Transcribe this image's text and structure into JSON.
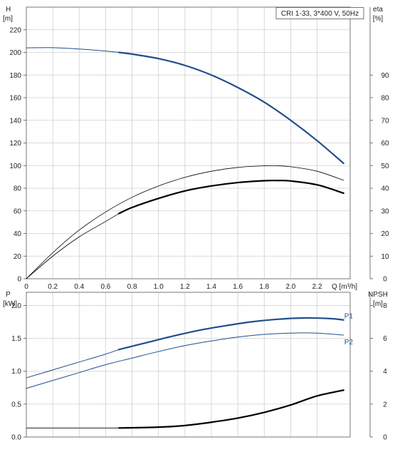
{
  "chart_data": [
    {
      "type": "line",
      "title": "CRI 1-33, 3*400 V, 50Hz",
      "x_label": "Q [m³/h]",
      "y_left_label": [
        "H",
        "[m]"
      ],
      "y_right_label": [
        "eta",
        "[%]"
      ],
      "x_ticks": [
        "0",
        "0.2",
        "0.4",
        "0.6",
        "0.8",
        "1.0",
        "1.2",
        "1.4",
        "1.6",
        "1.8",
        "2.0",
        "2.2"
      ],
      "x_tick_values": [
        0,
        0.2,
        0.4,
        0.6,
        0.8,
        1.0,
        1.2,
        1.4,
        1.6,
        1.8,
        2.0,
        2.2
      ],
      "y_left_ticks": [
        "0",
        "20",
        "40",
        "60",
        "80",
        "100",
        "120",
        "140",
        "160",
        "180",
        "200",
        "220"
      ],
      "y_left_tick_values": [
        0,
        20,
        40,
        60,
        80,
        100,
        120,
        140,
        160,
        180,
        200,
        220
      ],
      "y_right_ticks": [
        "0",
        "10",
        "20",
        "30",
        "40",
        "50",
        "60",
        "70",
        "80",
        "90"
      ],
      "y_right_tick_values": [
        0,
        10,
        20,
        30,
        40,
        50,
        60,
        70,
        80,
        90
      ],
      "xlim": [
        0,
        2.45
      ],
      "ylim_left": [
        0,
        240
      ],
      "ylim_right": [
        0,
        120
      ],
      "grid": true,
      "series": [
        {
          "color": "#1f4e8c",
          "width": 1.0,
          "axis": "left",
          "x": [
            0,
            0.2,
            0.4,
            0.6,
            0.7
          ],
          "y": [
            204,
            204.2,
            203,
            201.2,
            200
          ]
        },
        {
          "color": "#1f4e8c",
          "width": 2.2,
          "axis": "left",
          "x": [
            0.7,
            0.8,
            1.0,
            1.2,
            1.4,
            1.6,
            1.8,
            2.0,
            2.2,
            2.4
          ],
          "y": [
            200,
            198.5,
            194.5,
            188.5,
            180,
            169,
            156,
            140,
            122,
            102
          ]
        },
        {
          "color": "#000000",
          "width": 0.8,
          "axis": "right",
          "x": [
            0,
            0.2,
            0.4,
            0.6,
            0.8,
            1.0,
            1.2,
            1.4,
            1.6,
            1.8,
            1.9,
            2.0,
            2.2,
            2.4
          ],
          "y": [
            0,
            11.5,
            21.5,
            29.5,
            36,
            41,
            44.8,
            47.5,
            49.2,
            49.9,
            49.9,
            49.5,
            47.5,
            43.5
          ]
        },
        {
          "color": "#000000",
          "width": 0.8,
          "axis": "right",
          "x": [
            0,
            0.2,
            0.4,
            0.6,
            0.7
          ],
          "y": [
            0,
            10,
            18.5,
            25.3,
            28.8
          ]
        },
        {
          "color": "#000000",
          "width": 2.2,
          "axis": "right",
          "x": [
            0.7,
            0.8,
            1.0,
            1.2,
            1.4,
            1.6,
            1.8,
            1.9,
            2.0,
            2.2,
            2.4
          ],
          "y": [
            28.8,
            31.5,
            35.5,
            38.8,
            41,
            42.5,
            43.3,
            43.4,
            43.2,
            41.5,
            37.8
          ]
        }
      ]
    },
    {
      "type": "line",
      "y_left_label": [
        "P",
        "[kW]"
      ],
      "y_right_label": [
        "NPSH",
        "[m]"
      ],
      "y_left_ticks": [
        "0.0",
        "0.5",
        "1.0",
        "1.5",
        "2.0"
      ],
      "y_left_tick_values": [
        0,
        0.5,
        1.0,
        1.5,
        2.0
      ],
      "y_right_ticks": [
        "0",
        "2",
        "4",
        "6",
        "8"
      ],
      "y_right_tick_values": [
        0,
        2,
        4,
        6,
        8
      ],
      "xlim": [
        0,
        2.45
      ],
      "ylim_left": [
        0,
        2.2
      ],
      "ylim_right": [
        0,
        8.8
      ],
      "grid": true,
      "series": [
        {
          "name": "P1",
          "color": "#1f4e8c",
          "width": 1.0,
          "axis": "left",
          "x": [
            0,
            0.2,
            0.4,
            0.6,
            0.7
          ],
          "y": [
            0.9,
            1.02,
            1.14,
            1.26,
            1.33
          ]
        },
        {
          "name": "P1",
          "color": "#1f4e8c",
          "width": 2.2,
          "axis": "left",
          "x": [
            0.7,
            0.9,
            1.1,
            1.3,
            1.5,
            1.7,
            1.9,
            2.1,
            2.3,
            2.4
          ],
          "y": [
            1.33,
            1.43,
            1.53,
            1.62,
            1.69,
            1.75,
            1.79,
            1.81,
            1.8,
            1.78
          ]
        },
        {
          "name": "P2",
          "color": "#1f4e8c",
          "width": 1.0,
          "axis": "left",
          "x": [
            0,
            0.2,
            0.4,
            0.6,
            0.8,
            1.0,
            1.2,
            1.4,
            1.6,
            1.8,
            2.0,
            2.2,
            2.4
          ],
          "y": [
            0.74,
            0.86,
            0.98,
            1.1,
            1.2,
            1.3,
            1.39,
            1.46,
            1.52,
            1.56,
            1.58,
            1.58,
            1.55
          ]
        },
        {
          "color": "#000000",
          "width": 0.8,
          "axis": "right",
          "x": [
            0,
            0.7
          ],
          "y": [
            0.55,
            0.55
          ]
        },
        {
          "color": "#000000",
          "width": 2.2,
          "axis": "right",
          "x": [
            0.7,
            1.0,
            1.2,
            1.4,
            1.6,
            1.8,
            2.0,
            2.2,
            2.4
          ],
          "y": [
            0.55,
            0.6,
            0.7,
            0.9,
            1.15,
            1.5,
            1.95,
            2.5,
            2.85
          ]
        }
      ],
      "labels": [
        {
          "text": "P1",
          "x": 2.4,
          "y": 1.85,
          "color": "#1f4e8c"
        },
        {
          "text": "P2",
          "x": 2.4,
          "y": 1.45,
          "color": "#1f4e8c"
        }
      ]
    }
  ]
}
